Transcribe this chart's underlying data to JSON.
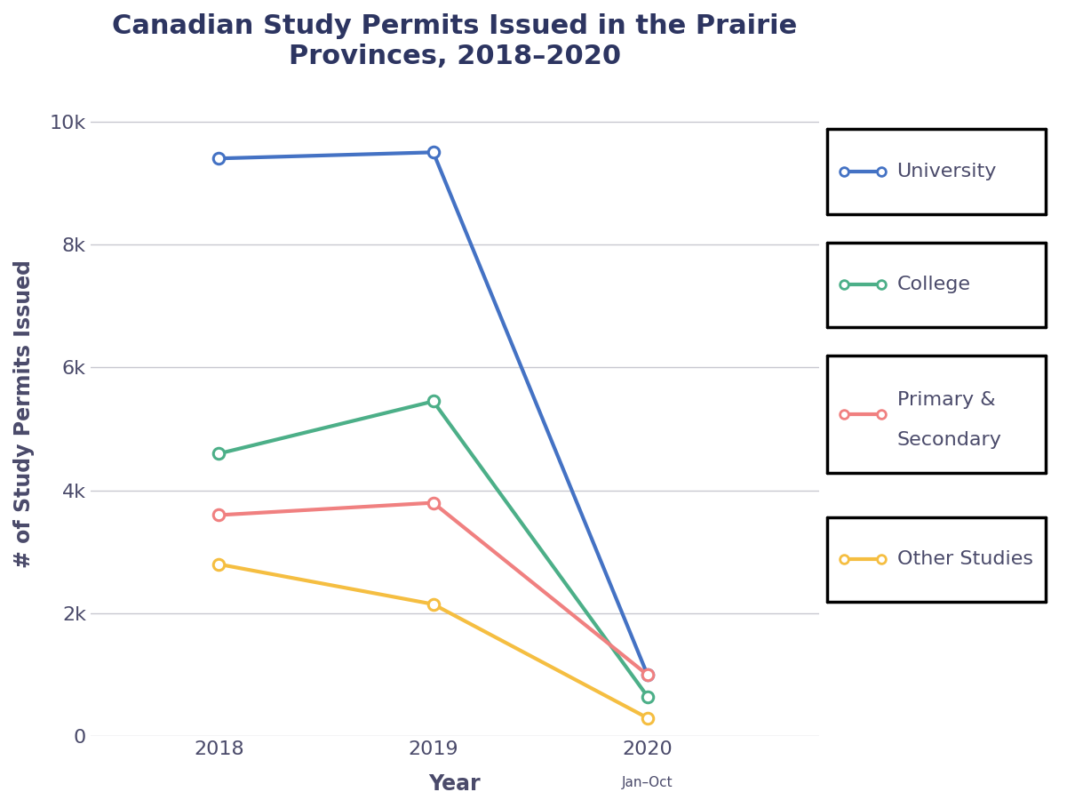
{
  "title": "Canadian Study Permits Issued in the Prairie\nProvinces, 2018–2020",
  "xlabel": "Year",
  "ylabel": "# of Study Permits Issued",
  "years": [
    2018,
    2019,
    2020
  ],
  "series": [
    {
      "label": "University",
      "color": "#4472C4",
      "values": [
        9400,
        9500,
        1000
      ]
    },
    {
      "label": "College",
      "color": "#4CAF88",
      "values": [
        4600,
        5450,
        650
      ]
    },
    {
      "label": "Primary &\nSecondary",
      "color": "#F08080",
      "values": [
        3600,
        3800,
        1000
      ]
    },
    {
      "label": "Other Studies",
      "color": "#F5BE41",
      "values": [
        2800,
        2150,
        300
      ]
    }
  ],
  "ylim": [
    0,
    10500
  ],
  "yticks": [
    0,
    2000,
    4000,
    6000,
    8000,
    10000
  ],
  "ytick_labels": [
    "0",
    "2k",
    "4k",
    "6k",
    "8k",
    "10k"
  ],
  "background_color": "#ffffff",
  "grid_color": "#c8c8d0",
  "title_color": "#2d3561",
  "axis_label_color": "#4a4a6a",
  "tick_label_color": "#4a4a6a",
  "legend_text_color": "#4a4a6a",
  "title_fontsize": 22,
  "axis_label_fontsize": 17,
  "tick_fontsize": 16,
  "legend_fontsize": 16,
  "linewidth": 3.0,
  "markersize": 9
}
